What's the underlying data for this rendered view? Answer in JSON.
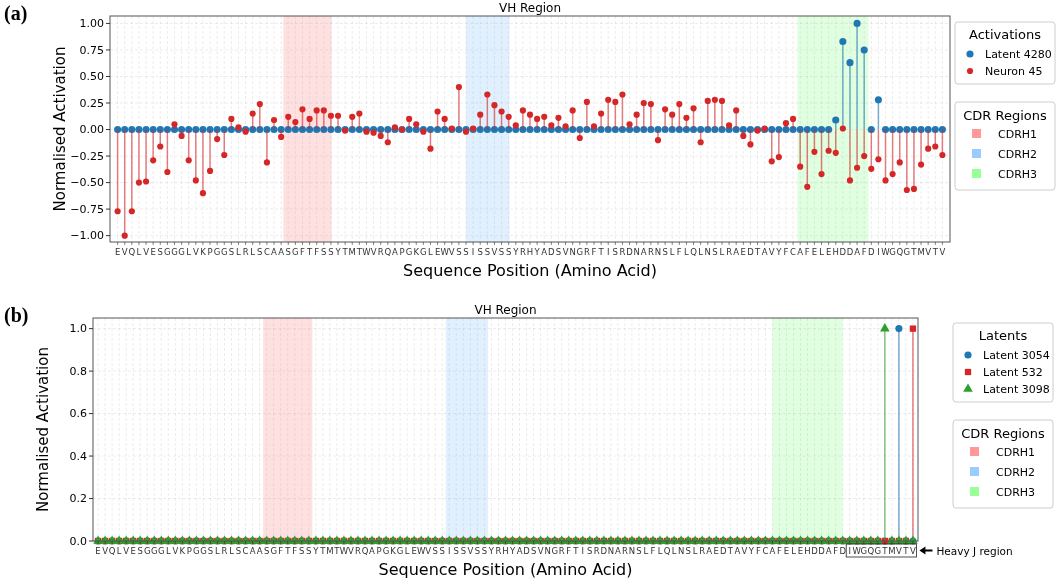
{
  "chart_data": [
    {
      "type": "lollipop",
      "title": "VH Region",
      "xlabel": "Sequence Position (Amino Acid)",
      "ylabel": "Normalised Activation",
      "legend_title": "Activations",
      "annotations": [
        "(a)",
        "CDR Regions",
        "CDRH1",
        "CDRH2",
        "CDRH3"
      ],
      "categories": [
        "E",
        "V",
        "Q",
        "L",
        "V",
        "E",
        "S",
        "G",
        "G",
        "G",
        "L",
        "V",
        "K",
        "P",
        "G",
        "G",
        "S",
        "L",
        "R",
        "L",
        "S",
        "C",
        "A",
        "A",
        "S",
        "G",
        "F",
        "T",
        "F",
        "S",
        "S",
        "Y",
        "T",
        "M",
        "T",
        "W",
        "V",
        "R",
        "Q",
        "A",
        "P",
        "G",
        "K",
        "G",
        "L",
        "E",
        "W",
        "V",
        "S",
        "S",
        "I",
        "S",
        "S",
        "V",
        "S",
        "S",
        "Y",
        "R",
        "H",
        "Y",
        "A",
        "D",
        "S",
        "V",
        "N",
        "G",
        "R",
        "F",
        "T",
        "I",
        "S",
        "R",
        "D",
        "N",
        "A",
        "R",
        "N",
        "S",
        "L",
        "F",
        "L",
        "Q",
        "L",
        "N",
        "S",
        "L",
        "R",
        "A",
        "E",
        "D",
        "T",
        "A",
        "V",
        "Y",
        "F",
        "C",
        "A",
        "F",
        "E",
        "L",
        "E",
        "H",
        "D",
        "D",
        "A",
        "F",
        "D",
        "I",
        "W",
        "G",
        "Q",
        "G",
        "T",
        "M",
        "V",
        "T",
        "V"
      ],
      "series": [
        {
          "name": "Latent 4280",
          "color": "#1f77b4",
          "marker": "circle",
          "values": [
            0,
            0,
            0,
            0,
            0,
            0,
            0,
            0,
            0,
            0,
            0,
            0,
            0,
            0,
            0,
            0,
            0,
            0,
            0,
            0,
            0,
            0,
            0,
            0,
            0,
            0,
            0,
            0,
            0,
            0,
            0,
            0,
            0,
            0,
            0,
            0,
            0,
            0,
            0,
            0,
            0,
            0,
            0,
            0,
            0,
            0,
            0,
            0,
            0,
            0,
            0,
            0,
            0,
            0,
            0,
            0,
            0,
            0,
            0,
            0,
            0,
            0,
            0,
            0,
            0,
            0,
            0,
            0,
            0,
            0,
            0,
            0,
            0,
            0,
            0,
            0,
            0,
            0,
            0,
            0,
            0,
            0,
            0,
            0,
            0,
            0,
            0,
            0,
            0,
            0,
            0,
            0,
            0,
            0,
            0,
            0,
            0,
            0,
            0,
            0,
            0,
            0.09,
            0.83,
            0.63,
            1.0,
            0.75,
            0,
            0.28,
            0,
            0,
            0,
            0,
            0,
            0,
            0,
            0,
            0
          ]
        },
        {
          "name": "Neuron 45",
          "color": "#d62728",
          "marker": "circle",
          "values": [
            -0.77,
            -1.0,
            -0.77,
            -0.5,
            -0.49,
            -0.29,
            -0.16,
            -0.4,
            0.05,
            -0.06,
            -0.29,
            -0.48,
            -0.6,
            -0.39,
            -0.09,
            -0.24,
            0.1,
            0.02,
            -0.02,
            0.15,
            0.24,
            -0.31,
            0.09,
            -0.07,
            0.12,
            0.07,
            0.19,
            0.1,
            0.18,
            0.18,
            0.13,
            0.13,
            -0.01,
            0.12,
            0.15,
            -0.02,
            -0.03,
            -0.06,
            -0.12,
            0.02,
            0,
            0.1,
            0.05,
            -0.02,
            -0.18,
            0.17,
            0.1,
            0.01,
            0.4,
            -0.02,
            0.01,
            0.14,
            0.33,
            0.23,
            0.17,
            0.12,
            0.04,
            0.18,
            0.14,
            0.1,
            0.12,
            0.04,
            0.11,
            0.03,
            0.18,
            -0.08,
            0.26,
            0.03,
            0.15,
            0.28,
            0.26,
            0.33,
            0.05,
            0.14,
            0.25,
            0.24,
            -0.1,
            0.19,
            0.14,
            0.24,
            0.11,
            0.2,
            -0.12,
            0.27,
            0.28,
            0.27,
            0.04,
            0.18,
            -0.06,
            -0.14,
            -0.01,
            0.01,
            -0.3,
            -0.26,
            0.06,
            0.1,
            -0.35,
            -0.54,
            -0.21,
            -0.42,
            -0.2,
            -0.22,
            0.01,
            -0.48,
            -0.36,
            -0.25,
            -0.37,
            -0.28,
            -0.48,
            -0.42,
            -0.31,
            -0.57,
            -0.56,
            -0.33,
            -0.18,
            -0.16,
            -0.24
          ]
        }
      ],
      "ylim": [
        -1.06,
        1.07
      ],
      "yticks": [
        {
          "value": -1,
          "label": "−1.00"
        },
        {
          "value": -0.75,
          "label": "−0.75"
        },
        {
          "value": -0.5,
          "label": "−0.50"
        },
        {
          "value": -0.25,
          "label": "−0.25"
        },
        {
          "value": 0,
          "label": "0.00"
        },
        {
          "value": 0.25,
          "label": "0.25"
        },
        {
          "value": 0.5,
          "label": "0.50"
        },
        {
          "value": 0.75,
          "label": "0.75"
        },
        {
          "value": 1,
          "label": "1.00"
        }
      ],
      "grid": true,
      "legend": "right"
    },
    {
      "type": "lollipop",
      "title": "VH Region",
      "xlabel": "Sequence Position (Amino Acid)",
      "ylabel": "Normalised Activation",
      "legend_title": "Latents",
      "annotations": [
        "(b)",
        "CDR Regions",
        "CDRH1",
        "CDRH2",
        "CDRH3",
        "Heavy J region"
      ],
      "categories": [
        "E",
        "V",
        "Q",
        "L",
        "V",
        "E",
        "S",
        "G",
        "G",
        "G",
        "L",
        "V",
        "K",
        "P",
        "G",
        "G",
        "S",
        "L",
        "R",
        "L",
        "S",
        "C",
        "A",
        "A",
        "S",
        "G",
        "F",
        "T",
        "F",
        "S",
        "S",
        "Y",
        "T",
        "M",
        "T",
        "W",
        "V",
        "R",
        "Q",
        "A",
        "P",
        "G",
        "K",
        "G",
        "L",
        "E",
        "W",
        "V",
        "S",
        "S",
        "I",
        "S",
        "S",
        "V",
        "S",
        "S",
        "Y",
        "R",
        "H",
        "Y",
        "A",
        "D",
        "S",
        "V",
        "N",
        "G",
        "R",
        "F",
        "T",
        "I",
        "S",
        "R",
        "D",
        "N",
        "A",
        "R",
        "N",
        "S",
        "L",
        "F",
        "L",
        "Q",
        "L",
        "N",
        "S",
        "L",
        "R",
        "A",
        "E",
        "D",
        "T",
        "A",
        "V",
        "Y",
        "F",
        "C",
        "A",
        "F",
        "E",
        "L",
        "E",
        "H",
        "D",
        "D",
        "A",
        "F",
        "D",
        "I",
        "W",
        "G",
        "Q",
        "G",
        "T",
        "M",
        "V",
        "T",
        "V"
      ],
      "series": [
        {
          "name": "Latent 3054",
          "color": "#1f77b4",
          "marker": "circle",
          "values": [
            0,
            0,
            0,
            0,
            0,
            0,
            0,
            0,
            0,
            0,
            0,
            0,
            0,
            0,
            0,
            0,
            0,
            0,
            0,
            0,
            0,
            0,
            0,
            0,
            0,
            0,
            0,
            0,
            0,
            0,
            0,
            0,
            0,
            0,
            0,
            0,
            0,
            0,
            0,
            0,
            0,
            0,
            0,
            0,
            0,
            0,
            0,
            0,
            0,
            0,
            0,
            0,
            0,
            0,
            0,
            0,
            0,
            0,
            0,
            0,
            0,
            0,
            0,
            0,
            0,
            0,
            0,
            0,
            0,
            0,
            0,
            0,
            0,
            0,
            0,
            0,
            0,
            0,
            0,
            0,
            0,
            0,
            0,
            0,
            0,
            0,
            0,
            0,
            0,
            0,
            0,
            0,
            0,
            0,
            0,
            0,
            0,
            0,
            0,
            0,
            0,
            0,
            0,
            0,
            0,
            0,
            0,
            0,
            0,
            0,
            0,
            0,
            0,
            0,
            1,
            0,
            0
          ]
        },
        {
          "name": "Latent 532",
          "color": "#d62728",
          "marker": "square",
          "values": [
            0,
            0,
            0,
            0,
            0,
            0,
            0,
            0,
            0,
            0,
            0,
            0,
            0,
            0,
            0,
            0,
            0,
            0,
            0,
            0,
            0,
            0,
            0,
            0,
            0,
            0,
            0,
            0,
            0,
            0,
            0,
            0,
            0,
            0,
            0,
            0,
            0,
            0,
            0,
            0,
            0,
            0,
            0,
            0,
            0,
            0,
            0,
            0,
            0,
            0,
            0,
            0,
            0,
            0,
            0,
            0,
            0,
            0,
            0,
            0,
            0,
            0,
            0,
            0,
            0,
            0,
            0,
            0,
            0,
            0,
            0,
            0,
            0,
            0,
            0,
            0,
            0,
            0,
            0,
            0,
            0,
            0,
            0,
            0,
            0,
            0,
            0,
            0,
            0,
            0,
            0,
            0,
            0,
            0,
            0,
            0,
            0,
            0,
            0,
            0,
            0,
            0,
            0,
            0,
            0,
            0,
            0,
            0,
            0,
            0,
            0,
            0,
            0,
            0,
            0,
            0,
            1
          ]
        },
        {
          "name": "Latent 3098",
          "color": "#2ca02c",
          "marker": "triangle",
          "values": [
            0,
            0,
            0,
            0,
            0,
            0,
            0,
            0,
            0,
            0,
            0,
            0,
            0,
            0,
            0,
            0,
            0,
            0,
            0,
            0,
            0,
            0,
            0,
            0,
            0,
            0,
            0,
            0,
            0,
            0,
            0,
            0,
            0,
            0,
            0,
            0,
            0,
            0,
            0,
            0,
            0,
            0,
            0,
            0,
            0,
            0,
            0,
            0,
            0,
            0,
            0,
            0,
            0,
            0,
            0,
            0,
            0,
            0,
            0,
            0,
            0,
            0,
            0,
            0,
            0,
            0,
            0,
            0,
            0,
            0,
            0,
            0,
            0,
            0,
            0,
            0,
            0,
            0,
            0,
            0,
            0,
            0,
            0,
            0,
            0,
            0,
            0,
            0,
            0,
            0,
            0,
            0,
            0,
            0,
            0,
            0,
            0,
            0,
            0,
            0,
            0,
            0,
            0,
            0,
            0,
            0,
            0,
            0,
            0,
            0,
            0,
            0,
            1,
            0,
            0,
            0,
            0
          ]
        }
      ],
      "ylim": [
        0,
        1.05
      ],
      "yticks": [
        {
          "value": 0,
          "label": "0.0"
        },
        {
          "value": 0.2,
          "label": "0.2"
        },
        {
          "value": 0.4,
          "label": "0.4"
        },
        {
          "value": 0.6,
          "label": "0.6"
        },
        {
          "value": 0.8,
          "label": "0.8"
        },
        {
          "value": 1,
          "label": "1.0"
        }
      ],
      "grid": true,
      "legend": "right"
    }
  ]
}
